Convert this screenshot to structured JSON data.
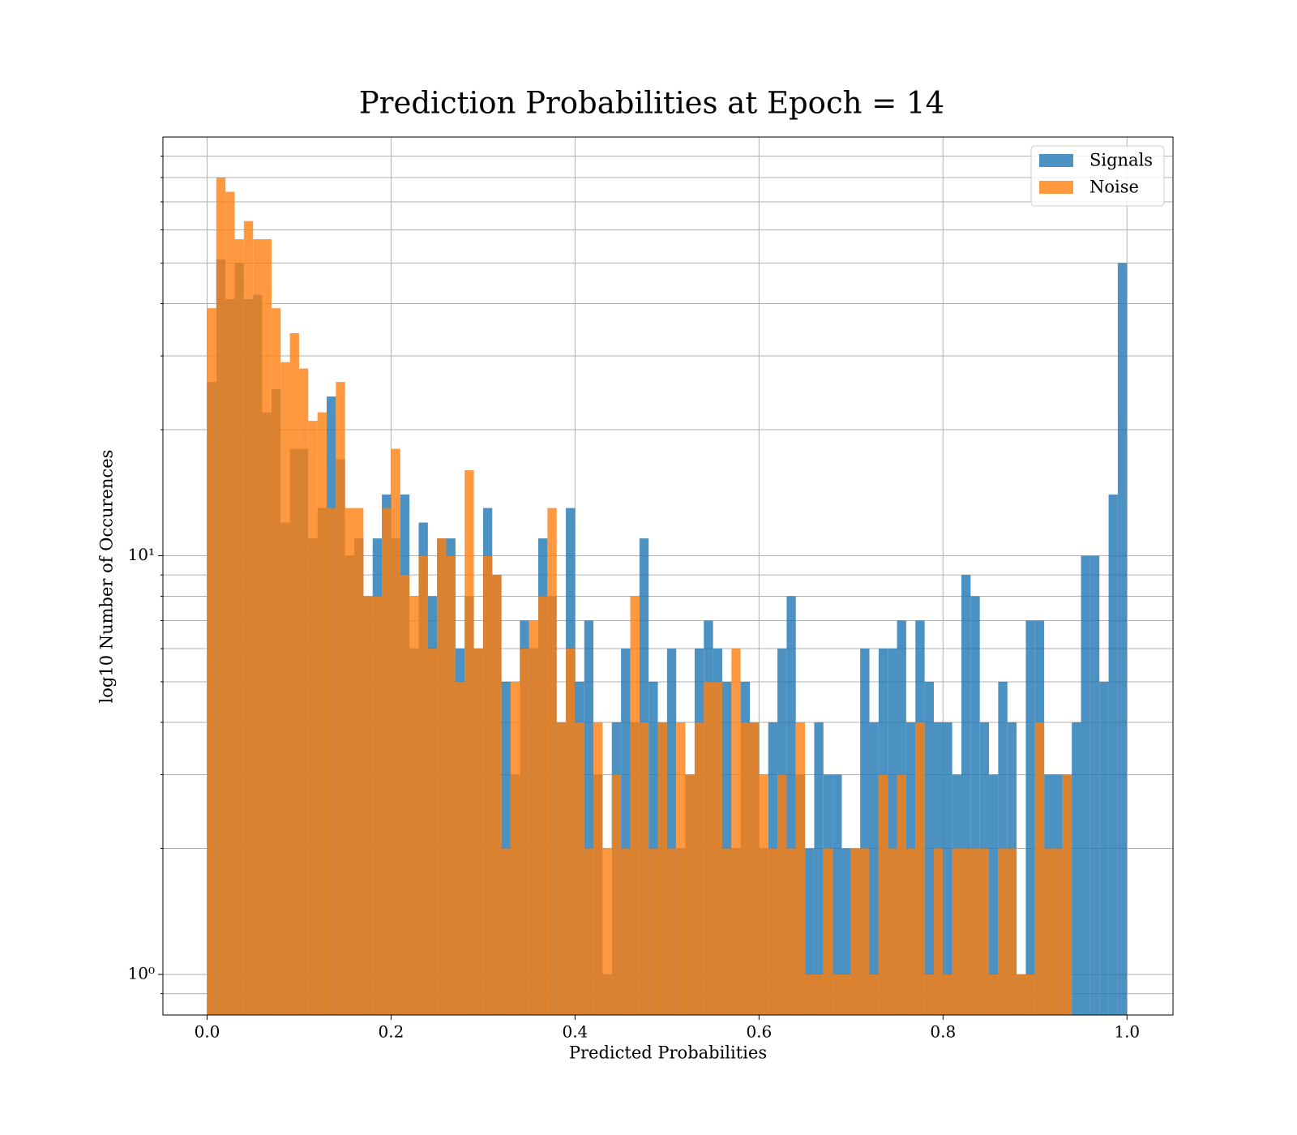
{
  "chart_data": {
    "type": "histogram",
    "title": "Prediction Probabilities at Epoch = 14",
    "xlabel": "Predicted Probabilities",
    "ylabel": "log10 Number of Occurences",
    "bins": [
      0,
      0.01,
      0.02,
      0.03,
      0.04,
      0.05,
      0.06,
      0.07,
      0.08,
      0.09,
      0.1,
      0.11,
      0.12,
      0.13,
      0.14,
      0.15,
      0.16,
      0.17,
      0.18,
      0.19,
      0.2,
      0.21,
      0.22,
      0.23,
      0.24,
      0.25,
      0.26,
      0.27,
      0.28,
      0.29,
      0.3,
      0.31,
      0.32,
      0.33,
      0.34,
      0.35,
      0.36,
      0.37,
      0.38,
      0.39,
      0.4,
      0.41,
      0.42,
      0.43,
      0.44,
      0.45,
      0.46,
      0.47,
      0.48,
      0.49,
      0.5,
      0.51,
      0.52,
      0.53,
      0.54,
      0.55,
      0.56,
      0.57,
      0.58,
      0.59,
      0.6,
      0.61,
      0.62,
      0.63,
      0.64,
      0.65,
      0.66,
      0.67,
      0.68,
      0.69,
      0.7,
      0.71,
      0.72,
      0.73,
      0.74,
      0.75,
      0.76,
      0.77,
      0.78,
      0.79,
      0.8,
      0.81,
      0.82,
      0.83,
      0.84,
      0.85,
      0.86,
      0.87,
      0.88,
      0.89,
      0.9,
      0.91,
      0.92,
      0.93,
      0.94,
      0.95,
      0.96,
      0.97,
      0.98,
      0.99,
      1
    ],
    "series": [
      {
        "name": "Signals",
        "color": "#1f77b4",
        "values": [
          26,
          51,
          41,
          50,
          41,
          42,
          22,
          25,
          12,
          18,
          18,
          11,
          13,
          24,
          17,
          10,
          11,
          8,
          11,
          14,
          11,
          14,
          6,
          12,
          8,
          11,
          11,
          6,
          8,
          6,
          13,
          9,
          5,
          3,
          7,
          6,
          11,
          8,
          4,
          13,
          5,
          7,
          3,
          1,
          4,
          6,
          4,
          11,
          5,
          4,
          6,
          2,
          3,
          6,
          7,
          6,
          5,
          2,
          5,
          4,
          2,
          4,
          6,
          8,
          3,
          2,
          4,
          3,
          3,
          2,
          2,
          6,
          4,
          6,
          6,
          7,
          4,
          7,
          5,
          4,
          4,
          3,
          9,
          8,
          4,
          3,
          5,
          4,
          1,
          7,
          7,
          3,
          3,
          3,
          4,
          10,
          10,
          5,
          14,
          50
        ]
      },
      {
        "name": "Noise",
        "color": "#ff7f0e",
        "values": [
          39,
          80,
          74,
          57,
          63,
          57,
          57,
          39,
          29,
          34,
          28,
          21,
          22,
          13,
          26,
          13,
          13,
          8,
          8,
          13,
          18,
          9,
          8,
          10,
          6,
          11,
          10,
          5,
          16,
          6,
          10,
          9,
          2,
          5,
          6,
          7,
          8,
          13,
          4,
          6,
          4,
          2,
          4,
          2,
          3,
          2,
          8,
          4,
          2,
          4,
          2,
          4,
          3,
          4,
          5,
          5,
          2,
          6,
          4,
          4,
          3,
          2,
          3,
          2,
          4,
          1,
          1,
          2,
          1,
          1,
          2,
          2,
          1,
          3,
          2,
          3,
          2,
          4,
          1,
          2,
          1,
          2,
          2,
          2,
          2,
          1,
          2,
          2,
          1,
          1,
          4,
          2,
          2,
          3,
          0,
          0,
          0,
          0,
          0,
          0
        ]
      }
    ],
    "opacity": 0.8,
    "xlim": [
      -0.048,
      1.05
    ],
    "xticks": [
      {
        "value": 0,
        "label": "0.0"
      },
      0.2,
      0.4,
      0.6,
      0.8,
      {
        "value": 1,
        "label": "1.0"
      }
    ],
    "ylim": [
      0.8,
      100
    ],
    "log_y": true,
    "yticks": [
      {
        "value": 1,
        "label": "10⁰"
      },
      {
        "value": 10,
        "label": "10¹"
      }
    ],
    "yticks_minor": [
      0.9,
      2,
      3,
      4,
      5,
      6,
      7,
      8,
      9,
      20,
      30,
      40,
      50,
      60,
      70,
      80,
      90
    ],
    "grid": true,
    "legend": "upper right"
  }
}
